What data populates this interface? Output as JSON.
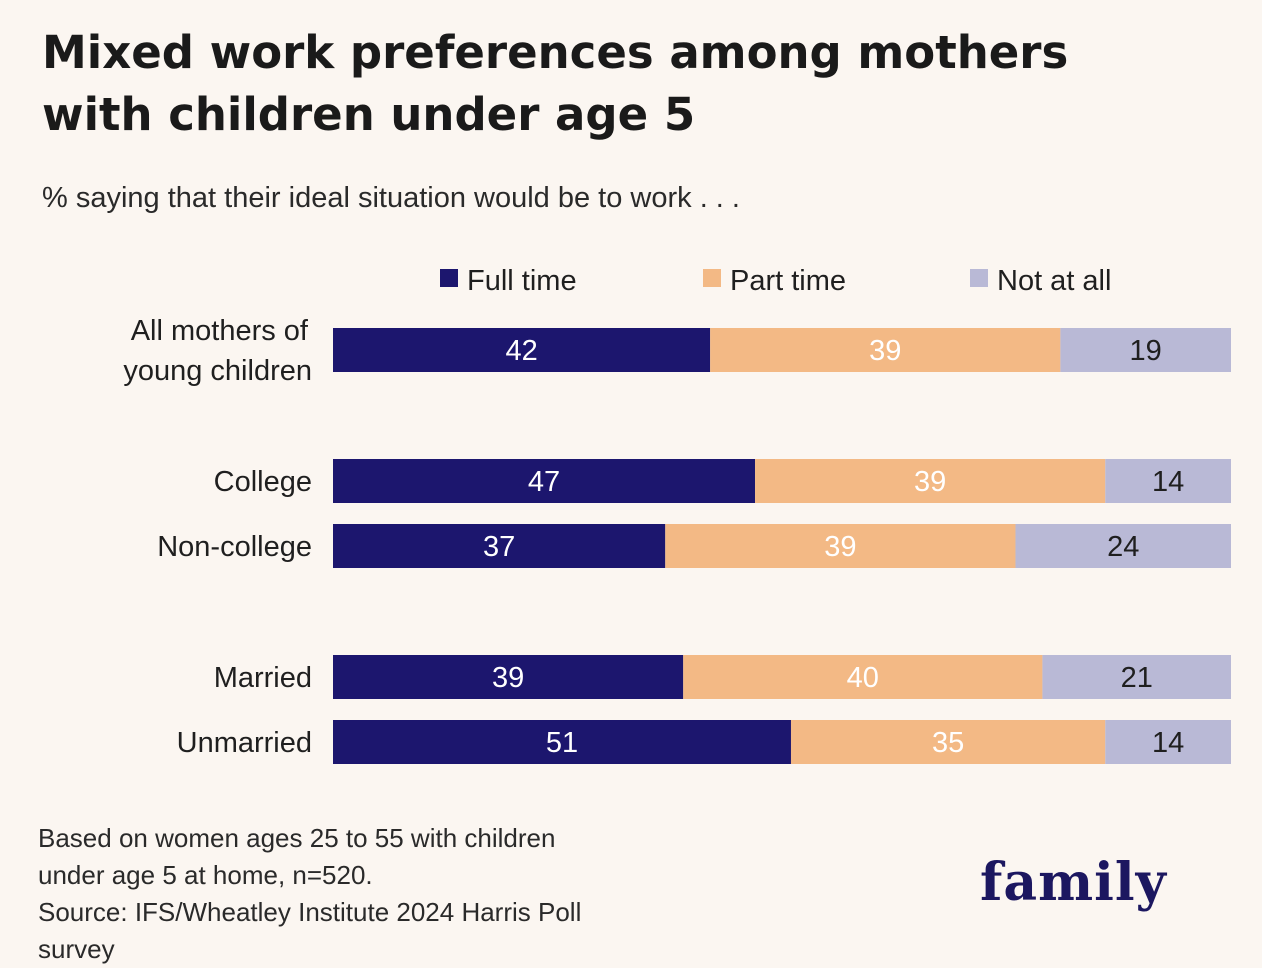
{
  "title": "Mixed work preferences among mothers with children under age 5",
  "subtitle": "% saying that their ideal situation would be to work . . .",
  "footnote": {
    "line1": "Based on women ages 25 to 55 with children",
    "line2": "under age 5 at home, n=520.",
    "line3": "Source: IFS/Wheatley Institute 2024 Harris Poll survey"
  },
  "logo": "family",
  "colors": {
    "full_time": "#1c166e",
    "part_time": "#f3b985",
    "not_at_all": "#b9b9d6",
    "label_on_dark": "#ffffff",
    "label_on_mid": "#ffffff",
    "label_on_light": "#1f1f1f"
  },
  "chart_data": {
    "type": "bar",
    "orientation": "horizontal",
    "stacked": true,
    "legend_position": "top",
    "xlim": [
      0,
      100
    ],
    "categories": [
      [
        "All mothers of",
        "young children"
      ],
      [
        "College"
      ],
      [
        "Non-college"
      ],
      [
        "Married"
      ],
      [
        "Unmarried"
      ]
    ],
    "series": [
      {
        "name": "Full time",
        "key": "full_time",
        "values": [
          42,
          47,
          37,
          39,
          51
        ]
      },
      {
        "name": "Part time",
        "key": "part_time",
        "values": [
          39,
          39,
          39,
          40,
          35
        ]
      },
      {
        "name": "Not at all",
        "key": "not_at_all",
        "values": [
          19,
          14,
          24,
          21,
          14
        ]
      }
    ]
  }
}
